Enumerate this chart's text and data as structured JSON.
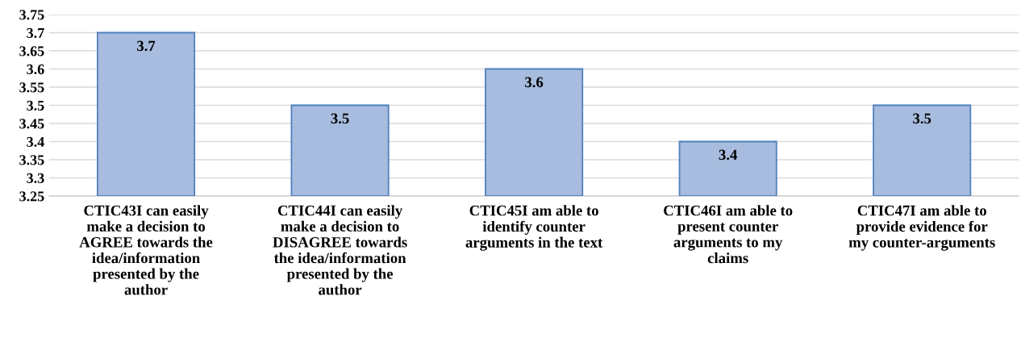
{
  "chart_data": {
    "type": "bar",
    "categories": [
      "CTIC43I can easily\nmake a decision to\nAGREE towards the\nidea/information\npresented by the\nauthor",
      "CTIC44I can easily\nmake a decision to\nDISAGREE towards\nthe idea/information\npresented by the\nauthor",
      "CTIC45I am able to\nidentify counter\narguments in the text",
      "CTIC46I am able to\npresent counter\narguments to my\nclaims",
      "CTIC47I am able to\nprovide evidence for\nmy counter-arguments"
    ],
    "values": [
      3.7,
      3.5,
      3.6,
      3.4,
      3.5
    ],
    "color": "#a7bcde",
    "ylim": [
      3.25,
      3.75
    ],
    "yticks": [
      3.25,
      3.3,
      3.35,
      3.4,
      3.45,
      3.5,
      3.55,
      3.6,
      3.65,
      3.7,
      3.75
    ],
    "grid": "y",
    "data_labels": true
  }
}
